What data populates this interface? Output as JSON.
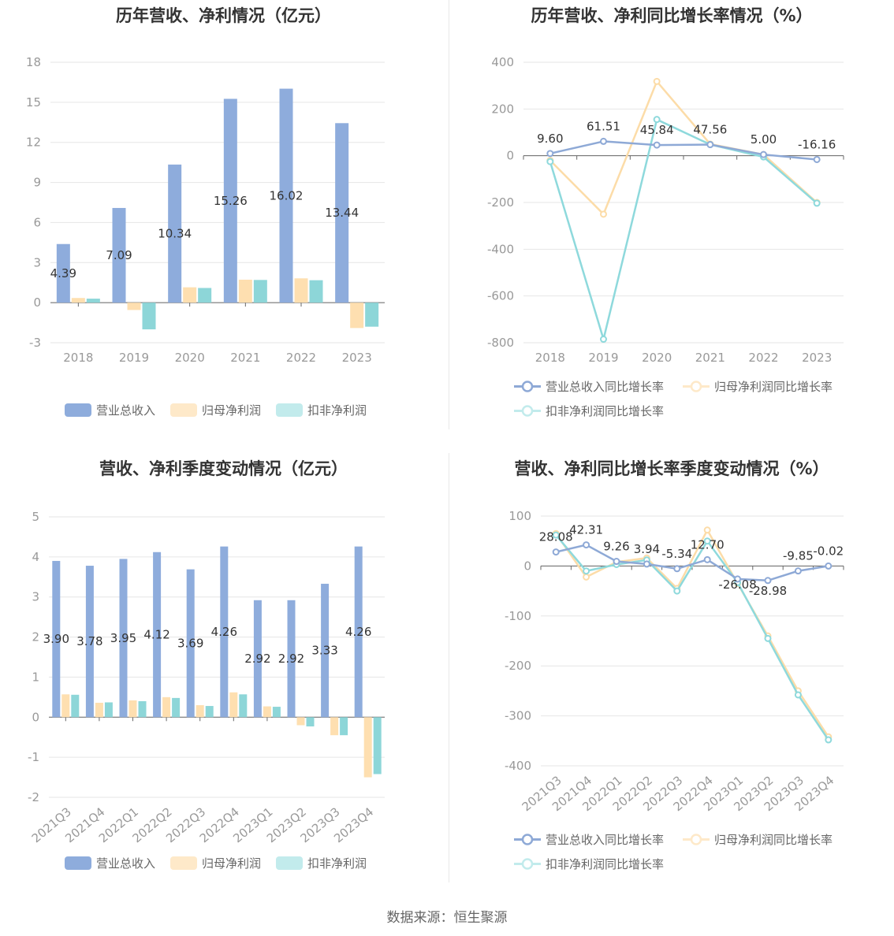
{
  "colors": {
    "revenue": "#8eacdc",
    "net_profit": "#fedfb0",
    "deducted_profit": "#8dd6d8",
    "revenue_line": "#8ea9d6",
    "net_line": "#fcdca8",
    "deducted_line": "#8ed9dc",
    "grid": "#e6e6e6",
    "axis_text": "#999999"
  },
  "legend": {
    "bar": [
      "营业总收入",
      "归母净利润",
      "扣非净利润"
    ],
    "line": [
      "营业总收入同比增长率",
      "归母净利润同比增长率",
      "扣非净利润同比增长率"
    ]
  },
  "source": "数据来源：恒生聚源",
  "chart_data": [
    {
      "type": "bar",
      "title": "历年营收、净利情况（亿元）",
      "categories": [
        "2018",
        "2019",
        "2020",
        "2021",
        "2022",
        "2023"
      ],
      "ylim": [
        -3,
        18
      ],
      "yticks": [
        -3,
        0,
        3,
        6,
        9,
        12,
        15,
        18
      ],
      "series": [
        {
          "name": "营业总收入",
          "values": [
            4.39,
            7.09,
            10.34,
            15.26,
            16.02,
            13.44
          ],
          "labels": [
            "4.39",
            "7.09",
            "10.34",
            "15.26",
            "16.02",
            "13.44"
          ]
        },
        {
          "name": "归母净利润",
          "values": [
            0.35,
            -0.55,
            1.15,
            1.72,
            1.82,
            -1.9
          ]
        },
        {
          "name": "扣非净利润",
          "values": [
            0.3,
            -2.0,
            1.1,
            1.7,
            1.68,
            -1.8
          ]
        }
      ]
    },
    {
      "type": "line",
      "title": "历年营收、净利同比增长率情况（%）",
      "categories": [
        "2018",
        "2019",
        "2020",
        "2021",
        "2022",
        "2023"
      ],
      "ylim": [
        -800,
        400
      ],
      "yticks": [
        -800,
        -600,
        -400,
        -200,
        0,
        200,
        400
      ],
      "series": [
        {
          "name": "营业总收入同比增长率",
          "values": [
            9.6,
            61.51,
            45.84,
            47.56,
            5.0,
            -16.16
          ],
          "labels": [
            "9.60",
            "61.51",
            "45.84",
            "47.56",
            "5.00",
            "-16.16"
          ]
        },
        {
          "name": "归母净利润同比增长率",
          "values": [
            -20,
            -250,
            318,
            50,
            5,
            -200
          ]
        },
        {
          "name": "扣非净利润同比增长率",
          "values": [
            -25,
            -785,
            155,
            48,
            -5,
            -203
          ]
        }
      ]
    },
    {
      "type": "bar",
      "title": "营收、净利季度变动情况（亿元）",
      "categories": [
        "2021Q3",
        "2021Q4",
        "2022Q1",
        "2022Q2",
        "2022Q3",
        "2022Q4",
        "2023Q1",
        "2023Q2",
        "2023Q3",
        "2023Q4"
      ],
      "ylim": [
        -2,
        5
      ],
      "yticks": [
        -2,
        -1,
        0,
        1,
        2,
        3,
        4,
        5
      ],
      "series": [
        {
          "name": "营业总收入",
          "values": [
            3.9,
            3.78,
            3.95,
            4.12,
            3.69,
            4.26,
            2.92,
            2.92,
            3.33,
            4.26
          ],
          "labels": [
            "3.90",
            "3.78",
            "3.95",
            "4.12",
            "3.69",
            "4.26",
            "2.92",
            "2.92",
            "3.33",
            "4.26"
          ]
        },
        {
          "name": "归母净利润",
          "values": [
            0.57,
            0.36,
            0.42,
            0.5,
            0.3,
            0.62,
            0.27,
            -0.2,
            -0.45,
            -1.5
          ]
        },
        {
          "name": "扣非净利润",
          "values": [
            0.56,
            0.37,
            0.4,
            0.48,
            0.28,
            0.57,
            0.26,
            -0.23,
            -0.45,
            -1.42
          ]
        }
      ]
    },
    {
      "type": "line",
      "title": "营收、净利同比增长率季度变动情况（%）",
      "categories": [
        "2021Q3",
        "2021Q4",
        "2022Q1",
        "2022Q2",
        "2022Q3",
        "2022Q4",
        "2023Q1",
        "2023Q2",
        "2023Q3",
        "2023Q4"
      ],
      "ylim": [
        -400,
        100
      ],
      "yticks": [
        -400,
        -300,
        -200,
        -100,
        0,
        100
      ],
      "series": [
        {
          "name": "营业总收入同比增长率",
          "values": [
            28.08,
            42.31,
            9.26,
            3.94,
            -5.34,
            12.7,
            -26.08,
            -28.98,
            -9.85,
            -0.02
          ],
          "labels": [
            "28.08",
            "42.31",
            "9.26",
            "3.94",
            "-5.34",
            "12.70",
            "-26.08",
            "-28.98",
            "-9.85",
            "-0.02"
          ]
        },
        {
          "name": "归母净利润同比增长率",
          "values": [
            65,
            -22,
            8,
            16,
            -45,
            72,
            -35,
            -140,
            -250,
            -342
          ]
        },
        {
          "name": "扣非净利润同比增长率",
          "values": [
            62,
            -10,
            3,
            12,
            -50,
            50,
            -33,
            -145,
            -258,
            -348
          ]
        }
      ]
    }
  ]
}
